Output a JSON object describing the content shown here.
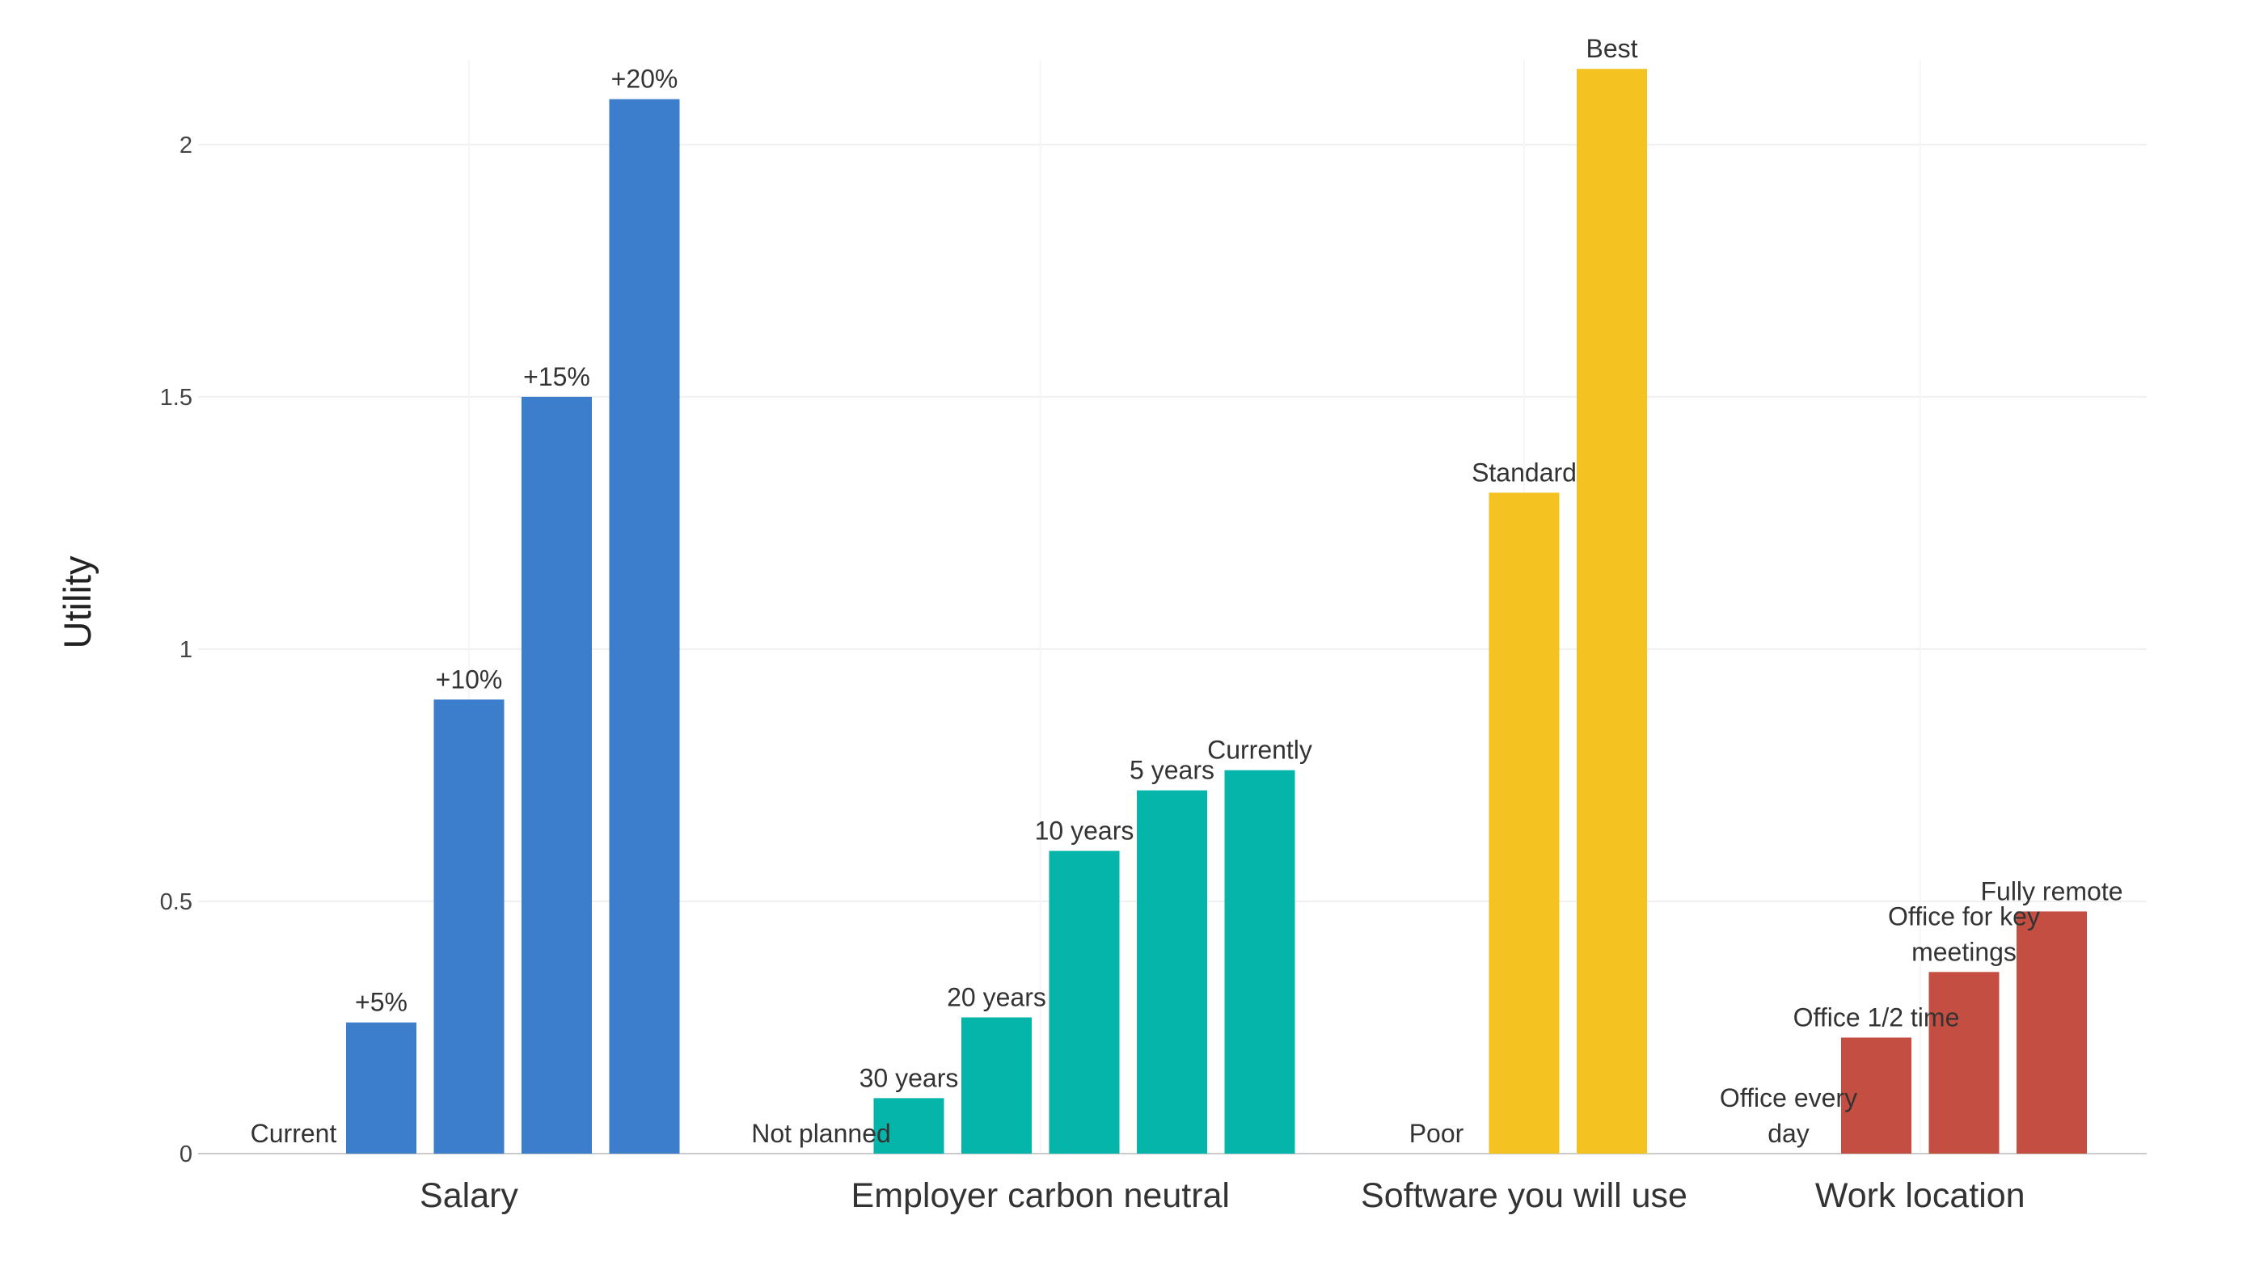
{
  "chart_data": {
    "type": "bar",
    "title": "",
    "xlabel": "",
    "ylabel": "Utility",
    "ylim": [
      0,
      2.2
    ],
    "yticks": [
      0,
      0.5,
      1,
      1.5,
      2
    ],
    "ytick_labels": [
      "0",
      "0.5",
      "1",
      "1.5",
      "2"
    ],
    "grid": true,
    "legend": "none",
    "groups": [
      {
        "name": "Salary",
        "color": "#3d7ecc",
        "levels": [
          "Current",
          "+5%",
          "+10%",
          "+15%",
          "+20%"
        ],
        "values": [
          0,
          0.26,
          0.9,
          1.5,
          2.09
        ]
      },
      {
        "name": "Employer carbon neutral",
        "color": "#06b5aa",
        "levels": [
          "Not planned",
          "30 years",
          "20 years",
          "10 years",
          "5 years",
          "Currently"
        ],
        "values": [
          0,
          0.11,
          0.27,
          0.6,
          0.72,
          0.76
        ]
      },
      {
        "name": "Software you will use",
        "color": "#f4c322",
        "levels": [
          "Poor",
          "Standard",
          "Best"
        ],
        "values": [
          0,
          1.31,
          2.15
        ]
      },
      {
        "name": "Work location",
        "color": "#c44e41",
        "levels": [
          "Office every day",
          "Office 1/2 time",
          "Office for key meetings",
          "Fully remote"
        ],
        "values": [
          0,
          0.23,
          0.36,
          0.48
        ]
      }
    ]
  }
}
